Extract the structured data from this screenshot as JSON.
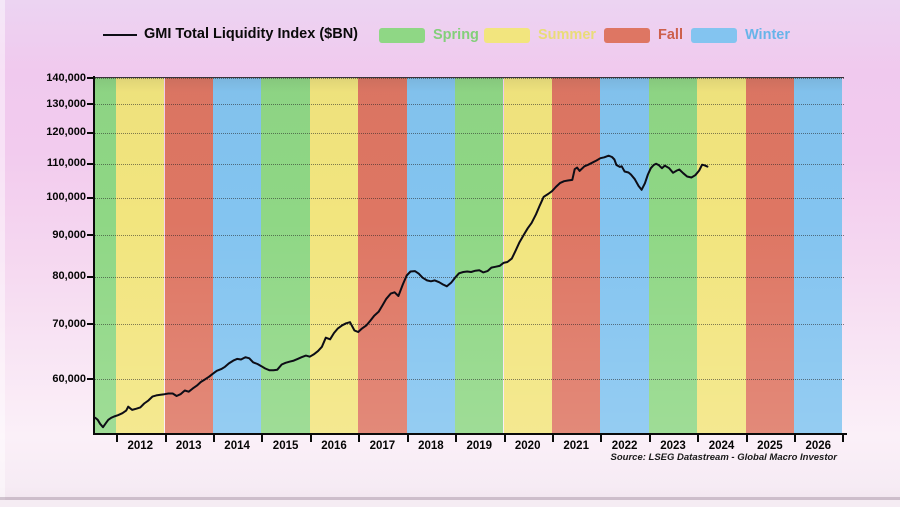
{
  "legend": {
    "series_label": "GMI Total Liquidity Index ($BN)",
    "items": [
      {
        "label": "Spring",
        "text_color": "#83cf7a"
      },
      {
        "label": "Summer",
        "text_color": "#e9dc78"
      },
      {
        "label": "Fall",
        "text_color": "#cd5f4b"
      },
      {
        "label": "Winter",
        "text_color": "#68b4e9"
      }
    ]
  },
  "source_note": "Source: LSEG Datastream - Global Macro Investor",
  "chart_data": {
    "type": "line",
    "title": "GMI Total Liquidity Index ($BN)",
    "legend_position": "top",
    "grid": "horizontal-dotted",
    "y_scale": "log",
    "ylim": [
      51400,
      140000
    ],
    "xlim": [
      2011.565,
      2027.03
    ],
    "y_ticks": [
      {
        "value": 140000,
        "label": "140,000"
      },
      {
        "value": 130000,
        "label": "130,000"
      },
      {
        "value": 120000,
        "label": "120,000"
      },
      {
        "value": 110000,
        "label": "110,000"
      },
      {
        "value": 100000,
        "label": "100,000"
      },
      {
        "value": 90000,
        "label": "90,000"
      },
      {
        "value": 80000,
        "label": "80,000"
      },
      {
        "value": 70000,
        "label": "70,000"
      },
      {
        "value": 60000,
        "label": "60,000"
      }
    ],
    "season_colors": {
      "Spring": "#8fd785",
      "Summer": "#f2e57e",
      "Fall": "#de7663",
      "Winter": "#83c4f0"
    },
    "season_by_year": [
      {
        "year": 2011,
        "season": "Spring"
      },
      {
        "year": 2012,
        "season": "Summer"
      },
      {
        "year": 2013,
        "season": "Fall"
      },
      {
        "year": 2014,
        "season": "Winter"
      },
      {
        "year": 2015,
        "season": "Spring"
      },
      {
        "year": 2016,
        "season": "Summer"
      },
      {
        "year": 2017,
        "season": "Fall"
      },
      {
        "year": 2018,
        "season": "Winter"
      },
      {
        "year": 2019,
        "season": "Spring"
      },
      {
        "year": 2020,
        "season": "Summer"
      },
      {
        "year": 2021,
        "season": "Fall"
      },
      {
        "year": 2022,
        "season": "Winter"
      },
      {
        "year": 2023,
        "season": "Spring"
      },
      {
        "year": 2024,
        "season": "Summer"
      },
      {
        "year": 2025,
        "season": "Fall"
      },
      {
        "year": 2026,
        "season": "Winter"
      }
    ],
    "series": [
      {
        "name": "GMI Total Liquidity Index ($BN)",
        "color": "#0d0d16",
        "points": [
          [
            2011.57,
            53800
          ],
          [
            2011.62,
            53500
          ],
          [
            2011.67,
            52900
          ],
          [
            2011.73,
            52400
          ],
          [
            2011.79,
            53000
          ],
          [
            2011.84,
            53500
          ],
          [
            2011.9,
            53800
          ],
          [
            2011.96,
            54000
          ],
          [
            2012.04,
            54200
          ],
          [
            2012.13,
            54500
          ],
          [
            2012.21,
            54900
          ],
          [
            2012.25,
            55500
          ],
          [
            2012.33,
            55000
          ],
          [
            2012.42,
            55200
          ],
          [
            2012.5,
            55400
          ],
          [
            2012.58,
            56000
          ],
          [
            2012.67,
            56500
          ],
          [
            2012.75,
            57100
          ],
          [
            2012.83,
            57300
          ],
          [
            2012.92,
            57400
          ],
          [
            2013.0,
            57500
          ],
          [
            2013.08,
            57600
          ],
          [
            2013.17,
            57600
          ],
          [
            2013.25,
            57200
          ],
          [
            2013.33,
            57500
          ],
          [
            2013.42,
            58100
          ],
          [
            2013.5,
            57900
          ],
          [
            2013.58,
            58400
          ],
          [
            2013.67,
            58900
          ],
          [
            2013.75,
            59500
          ],
          [
            2013.83,
            59900
          ],
          [
            2013.92,
            60400
          ],
          [
            2014.0,
            60900
          ],
          [
            2014.08,
            61400
          ],
          [
            2014.17,
            61700
          ],
          [
            2014.25,
            62100
          ],
          [
            2014.33,
            62700
          ],
          [
            2014.42,
            63200
          ],
          [
            2014.5,
            63500
          ],
          [
            2014.58,
            63400
          ],
          [
            2014.67,
            63800
          ],
          [
            2014.75,
            63600
          ],
          [
            2014.83,
            62900
          ],
          [
            2014.92,
            62600
          ],
          [
            2015.0,
            62200
          ],
          [
            2015.08,
            61800
          ],
          [
            2015.17,
            61500
          ],
          [
            2015.25,
            61500
          ],
          [
            2015.33,
            61600
          ],
          [
            2015.42,
            62500
          ],
          [
            2015.5,
            62800
          ],
          [
            2015.58,
            63000
          ],
          [
            2015.67,
            63200
          ],
          [
            2015.75,
            63500
          ],
          [
            2015.83,
            63800
          ],
          [
            2015.92,
            64100
          ],
          [
            2016.0,
            63900
          ],
          [
            2016.08,
            64300
          ],
          [
            2016.17,
            64900
          ],
          [
            2016.25,
            65700
          ],
          [
            2016.33,
            67400
          ],
          [
            2016.42,
            67100
          ],
          [
            2016.5,
            68300
          ],
          [
            2016.58,
            69200
          ],
          [
            2016.67,
            69800
          ],
          [
            2016.75,
            70200
          ],
          [
            2016.83,
            70400
          ],
          [
            2016.92,
            68800
          ],
          [
            2017.0,
            68500
          ],
          [
            2017.08,
            69200
          ],
          [
            2017.17,
            69800
          ],
          [
            2017.25,
            70700
          ],
          [
            2017.33,
            71700
          ],
          [
            2017.42,
            72500
          ],
          [
            2017.5,
            73800
          ],
          [
            2017.58,
            75200
          ],
          [
            2017.67,
            76300
          ],
          [
            2017.75,
            76600
          ],
          [
            2017.83,
            75800
          ],
          [
            2017.92,
            78300
          ],
          [
            2018.0,
            80300
          ],
          [
            2018.08,
            81200
          ],
          [
            2018.17,
            81300
          ],
          [
            2018.25,
            80700
          ],
          [
            2018.33,
            79800
          ],
          [
            2018.42,
            79200
          ],
          [
            2018.5,
            79000
          ],
          [
            2018.58,
            79200
          ],
          [
            2018.67,
            78800
          ],
          [
            2018.75,
            78300
          ],
          [
            2018.83,
            77900
          ],
          [
            2018.92,
            78700
          ],
          [
            2019.0,
            79800
          ],
          [
            2019.08,
            80800
          ],
          [
            2019.17,
            81100
          ],
          [
            2019.25,
            81200
          ],
          [
            2019.33,
            81100
          ],
          [
            2019.42,
            81400
          ],
          [
            2019.5,
            81500
          ],
          [
            2019.58,
            81000
          ],
          [
            2019.67,
            81300
          ],
          [
            2019.75,
            82100
          ],
          [
            2019.83,
            82300
          ],
          [
            2019.92,
            82500
          ],
          [
            2020.0,
            83200
          ],
          [
            2020.08,
            83400
          ],
          [
            2020.17,
            84200
          ],
          [
            2020.25,
            86100
          ],
          [
            2020.33,
            88200
          ],
          [
            2020.42,
            90100
          ],
          [
            2020.5,
            91700
          ],
          [
            2020.58,
            93100
          ],
          [
            2020.67,
            95400
          ],
          [
            2020.75,
            97800
          ],
          [
            2020.83,
            100200
          ],
          [
            2020.92,
            101000
          ],
          [
            2021.0,
            101800
          ],
          [
            2021.08,
            103000
          ],
          [
            2021.17,
            104200
          ],
          [
            2021.25,
            104700
          ],
          [
            2021.33,
            104900
          ],
          [
            2021.42,
            105100
          ],
          [
            2021.47,
            108300
          ],
          [
            2021.52,
            108800
          ],
          [
            2021.57,
            107800
          ],
          [
            2021.67,
            109200
          ],
          [
            2021.75,
            109700
          ],
          [
            2021.83,
            110300
          ],
          [
            2021.92,
            111000
          ],
          [
            2022.0,
            111700
          ],
          [
            2022.08,
            112000
          ],
          [
            2022.17,
            112500
          ],
          [
            2022.24,
            112100
          ],
          [
            2022.29,
            111300
          ],
          [
            2022.33,
            109600
          ],
          [
            2022.4,
            109000
          ],
          [
            2022.44,
            109200
          ],
          [
            2022.5,
            107600
          ],
          [
            2022.58,
            107300
          ],
          [
            2022.63,
            106700
          ],
          [
            2022.71,
            105300
          ],
          [
            2022.79,
            103300
          ],
          [
            2022.85,
            102200
          ],
          [
            2022.92,
            104100
          ],
          [
            2022.98,
            106700
          ],
          [
            2023.04,
            108600
          ],
          [
            2023.1,
            109600
          ],
          [
            2023.15,
            110000
          ],
          [
            2023.21,
            109500
          ],
          [
            2023.27,
            108600
          ],
          [
            2023.33,
            109400
          ],
          [
            2023.42,
            108600
          ],
          [
            2023.5,
            107200
          ],
          [
            2023.58,
            107900
          ],
          [
            2023.63,
            108200
          ],
          [
            2023.71,
            107100
          ],
          [
            2023.79,
            106100
          ],
          [
            2023.88,
            105800
          ],
          [
            2023.96,
            106500
          ],
          [
            2024.04,
            107900
          ],
          [
            2024.1,
            109700
          ],
          [
            2024.15,
            109500
          ],
          [
            2024.21,
            109100
          ]
        ]
      }
    ]
  }
}
